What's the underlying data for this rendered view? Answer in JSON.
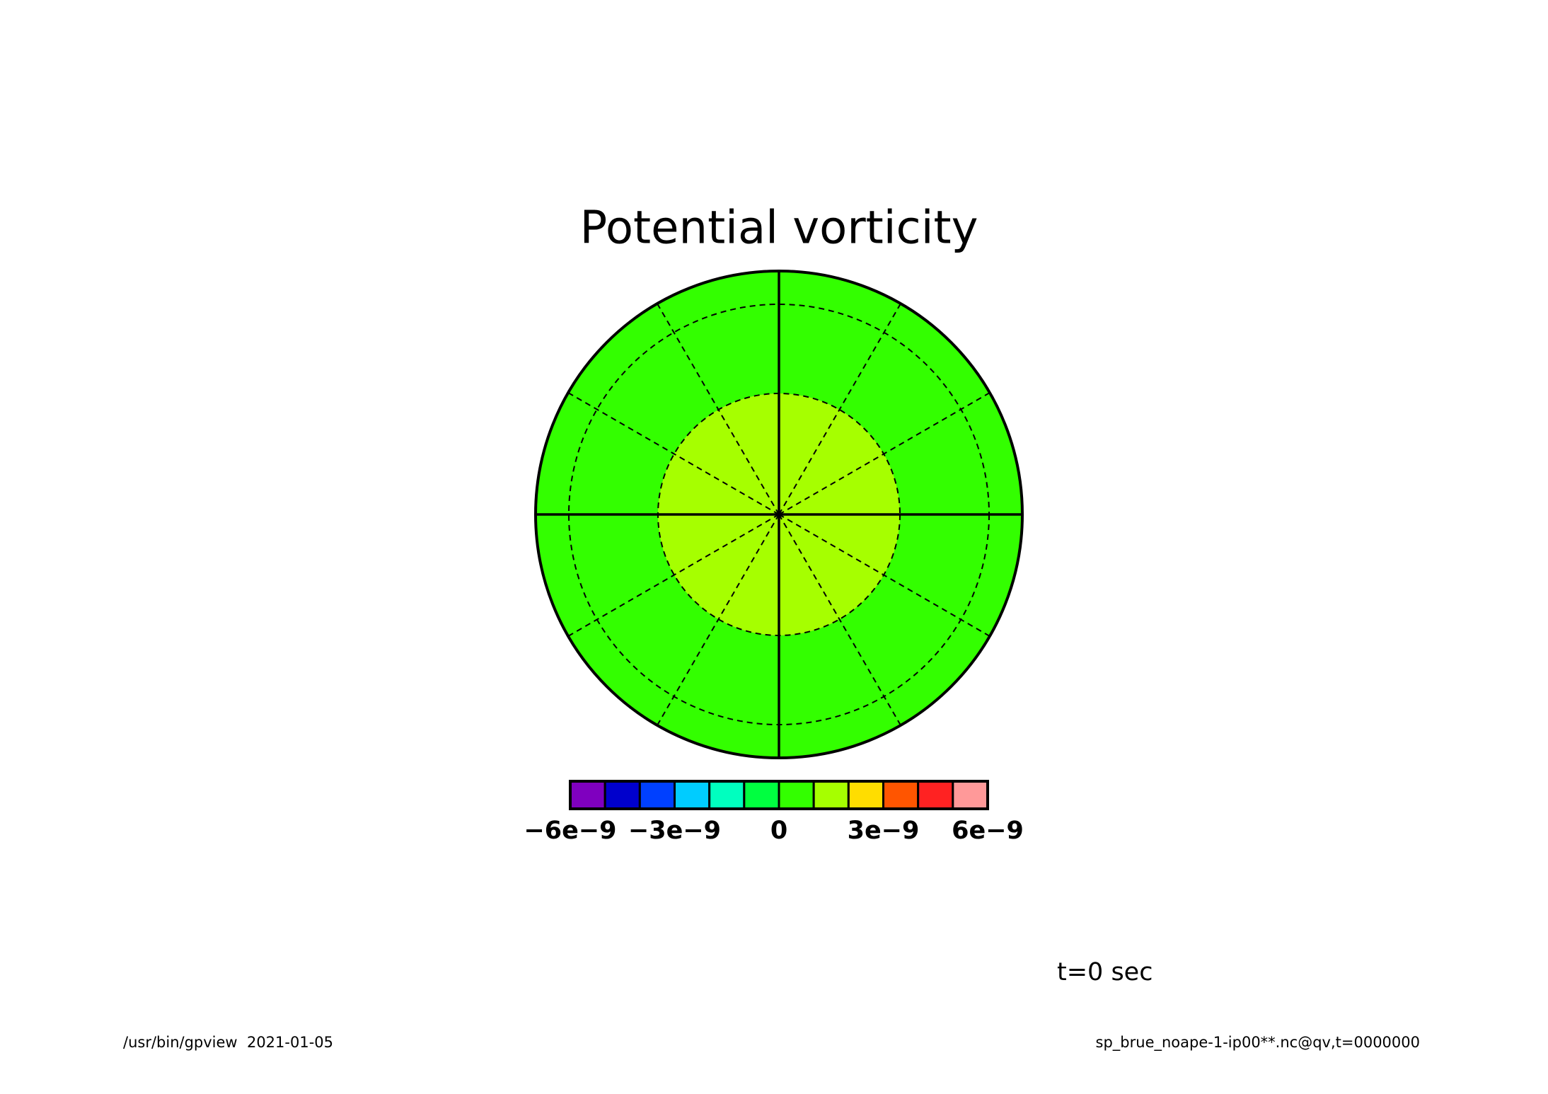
{
  "chart_data": {
    "type": "polar",
    "title": "Potential vorticity",
    "colorbar": {
      "colors": [
        "#7f00bf",
        "#0000cc",
        "#0040ff",
        "#00ccff",
        "#00ffbf",
        "#00ff40",
        "#33ff00",
        "#a6ff00",
        "#ffdd00",
        "#ff5500",
        "#ff2222",
        "#ff9999"
      ],
      "lim": [
        -6e-09,
        6e-09
      ],
      "ticks": [
        {
          "value": -6e-09,
          "label": "−6e−9"
        },
        {
          "value": -3e-09,
          "label": "−3e−9"
        },
        0,
        {
          "value": 3e-09,
          "label": "3e−9"
        },
        {
          "value": 6e-09,
          "label": "6e−9"
        }
      ]
    },
    "annotations": [
      "t=0 sec",
      "/usr/bin/gpview  2021-01-05",
      "sp_brue_noape-1-ip00**.nc@qv,t=0000000"
    ]
  }
}
